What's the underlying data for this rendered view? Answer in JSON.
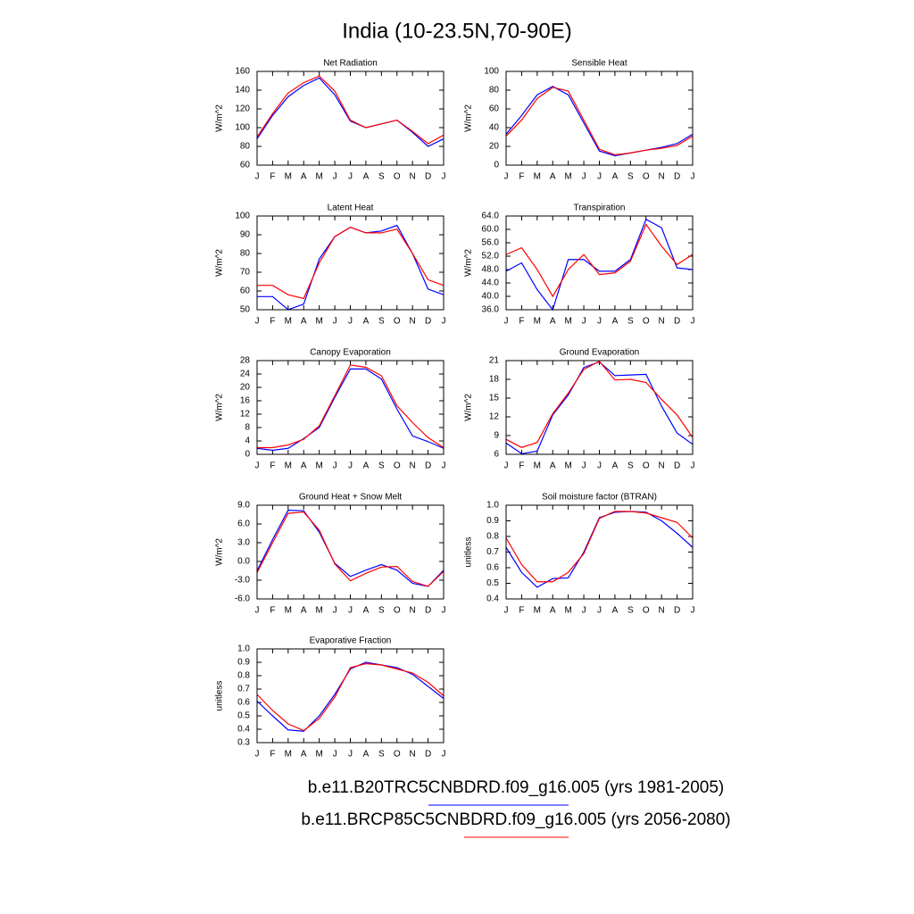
{
  "title": "India (10-23.5N,70-90E)",
  "chart_data": [
    {
      "type": "line",
      "title": "Net Radiation",
      "ylabel": "W/m^2",
      "categories": [
        "J",
        "F",
        "M",
        "A",
        "M",
        "J",
        "J",
        "A",
        "S",
        "O",
        "N",
        "D",
        "J"
      ],
      "ylim": [
        60,
        160
      ],
      "yticks": [
        60,
        80,
        100,
        120,
        140,
        160
      ],
      "series": [
        {
          "name": "b.e11.B20TRC5CNBDRD.f09_g16.005 (yrs 1981-2005)",
          "color": "#0000ff",
          "values": [
            88,
            113,
            133,
            145,
            153,
            135,
            107,
            100,
            104,
            108,
            95,
            80,
            88
          ]
        },
        {
          "name": "b.e11.BRCP85C5CNBDRD.f09_g16.005 (yrs 2056-2080)",
          "color": "#ff0000",
          "values": [
            90,
            115,
            137,
            148,
            155,
            139,
            108,
            100,
            104,
            108,
            96,
            83,
            92
          ]
        }
      ]
    },
    {
      "type": "line",
      "title": "Sensible Heat",
      "ylabel": "W/m^2",
      "categories": [
        "J",
        "F",
        "M",
        "A",
        "M",
        "J",
        "J",
        "A",
        "S",
        "O",
        "N",
        "D",
        "J"
      ],
      "ylim": [
        0,
        100
      ],
      "yticks": [
        0,
        20,
        40,
        60,
        80,
        100
      ],
      "series": [
        {
          "name": "b.e11.B20TRC5CNBDRD.f09_g16.005 (yrs 1981-2005)",
          "color": "#0000ff",
          "values": [
            33,
            53,
            75,
            84,
            75,
            45,
            15,
            10,
            13,
            16,
            19,
            23,
            33
          ]
        },
        {
          "name": "b.e11.BRCP85C5CNBDRD.f09_g16.005 (yrs 2056-2080)",
          "color": "#ff0000",
          "values": [
            31,
            48,
            71,
            83,
            79,
            48,
            17,
            11,
            13,
            16,
            18,
            21,
            31
          ]
        }
      ]
    },
    {
      "type": "line",
      "title": "Latent Heat",
      "ylabel": "W/m^2",
      "categories": [
        "J",
        "F",
        "M",
        "A",
        "M",
        "J",
        "J",
        "A",
        "S",
        "O",
        "N",
        "D",
        "J"
      ],
      "ylim": [
        50,
        100
      ],
      "yticks": [
        50,
        60,
        70,
        80,
        90,
        100
      ],
      "series": [
        {
          "name": "b.e11.B20TRC5CNBDRD.f09_g16.005 (yrs 1981-2005)",
          "color": "#0000ff",
          "values": [
            57,
            57,
            50,
            53,
            77,
            89,
            94,
            91,
            92,
            95,
            80,
            61,
            58
          ]
        },
        {
          "name": "b.e11.BRCP85C5CNBDRD.f09_g16.005 (yrs 2056-2080)",
          "color": "#ff0000",
          "values": [
            63,
            63,
            58,
            56,
            75,
            89,
            94,
            91,
            91,
            93,
            80,
            66,
            63
          ]
        }
      ]
    },
    {
      "type": "line",
      "title": "Transpiration",
      "ylabel": "W/m^2",
      "categories": [
        "J",
        "F",
        "M",
        "A",
        "M",
        "J",
        "J",
        "A",
        "S",
        "O",
        "N",
        "D",
        "J"
      ],
      "ylim": [
        36,
        64
      ],
      "yticks": [
        {
          "value": 36,
          "label": "36.0"
        },
        {
          "value": 40,
          "label": "40.0"
        },
        {
          "value": 44,
          "label": "44.0"
        },
        {
          "value": 48,
          "label": "48.0"
        },
        {
          "value": 52,
          "label": "52.0"
        },
        {
          "value": 56,
          "label": "56.0"
        },
        {
          "value": 60,
          "label": "60.0"
        },
        {
          "value": 64,
          "label": "64.0"
        }
      ],
      "series": [
        {
          "name": "b.e11.B20TRC5CNBDRD.f09_g16.005 (yrs 1981-2005)",
          "color": "#0000ff",
          "values": [
            47.5,
            50,
            42,
            36,
            51,
            51,
            47.5,
            47.5,
            51,
            63,
            60.5,
            48.5,
            48
          ]
        },
        {
          "name": "b.e11.BRCP85C5CNBDRD.f09_g16.005 (yrs 2056-2080)",
          "color": "#ff0000",
          "values": [
            52.5,
            54.5,
            48,
            40,
            48,
            52.5,
            46.5,
            47,
            50.5,
            61.5,
            55,
            49.5,
            52.5
          ]
        }
      ]
    },
    {
      "type": "line",
      "title": "Canopy Evaporation",
      "ylabel": "W/m^2",
      "categories": [
        "J",
        "F",
        "M",
        "A",
        "M",
        "J",
        "J",
        "A",
        "S",
        "O",
        "N",
        "D",
        "J"
      ],
      "ylim": [
        0,
        28
      ],
      "yticks": [
        0,
        4,
        8,
        12,
        16,
        20,
        24,
        28
      ],
      "series": [
        {
          "name": "b.e11.B20TRC5CNBDRD.f09_g16.005 (yrs 1981-2005)",
          "color": "#0000ff",
          "values": [
            1.8,
            1.2,
            1.8,
            4.7,
            8,
            17,
            25.5,
            25.5,
            22.5,
            13.5,
            5.5,
            3.8,
            1.8
          ]
        },
        {
          "name": "b.e11.BRCP85C5CNBDRD.f09_g16.005 (yrs 2056-2080)",
          "color": "#ff0000",
          "values": [
            2,
            2,
            2.8,
            4.5,
            8.5,
            17.5,
            26.7,
            26,
            23.5,
            14.5,
            9.5,
            5,
            2
          ]
        }
      ]
    },
    {
      "type": "line",
      "title": "Ground Evaporation",
      "ylabel": "W/m^2",
      "categories": [
        "J",
        "F",
        "M",
        "A",
        "M",
        "J",
        "J",
        "A",
        "S",
        "O",
        "N",
        "D",
        "J"
      ],
      "ylim": [
        6,
        21
      ],
      "yticks": [
        6,
        9,
        12,
        15,
        18,
        21
      ],
      "series": [
        {
          "name": "b.e11.B20TRC5CNBDRD.f09_g16.005 (yrs 1981-2005)",
          "color": "#0000ff",
          "values": [
            7.8,
            6.1,
            6.5,
            12.3,
            15.5,
            19.9,
            20.8,
            18.6,
            18.7,
            18.8,
            13.7,
            9.4,
            7.6
          ]
        },
        {
          "name": "b.e11.BRCP85C5CNBDRD.f09_g16.005 (yrs 2056-2080)",
          "color": "#ff0000",
          "values": [
            8.4,
            7.1,
            7.9,
            12.5,
            15.8,
            19.6,
            20.9,
            17.9,
            18,
            17.5,
            14.8,
            12.3,
            8.7
          ]
        }
      ]
    },
    {
      "type": "line",
      "title": "Ground Heat + Snow Melt",
      "ylabel": "W/m^2",
      "categories": [
        "J",
        "F",
        "M",
        "A",
        "M",
        "J",
        "J",
        "A",
        "S",
        "O",
        "N",
        "D",
        "J"
      ],
      "ylim": [
        -6,
        9
      ],
      "yticks": [
        {
          "value": -6,
          "label": "-6.0"
        },
        {
          "value": -3,
          "label": "-3.0"
        },
        {
          "value": 0,
          "label": "0.0"
        },
        {
          "value": 3,
          "label": "3.0"
        },
        {
          "value": 6,
          "label": "6.0"
        },
        {
          "value": 9,
          "label": "9.0"
        }
      ],
      "series": [
        {
          "name": "b.e11.B20TRC5CNBDRD.f09_g16.005 (yrs 1981-2005)",
          "color": "#0000ff",
          "values": [
            -1.5,
            3.5,
            8.2,
            8.1,
            4.7,
            -0.3,
            -2.4,
            -1.4,
            -0.5,
            -1.4,
            -3.5,
            -4,
            -1.4
          ]
        },
        {
          "name": "b.e11.BRCP85C5CNBDRD.f09_g16.005 (yrs 2056-2080)",
          "color": "#ff0000",
          "values": [
            -1.8,
            3,
            7.7,
            7.9,
            5,
            -0.4,
            -3.1,
            -1.9,
            -0.9,
            -0.8,
            -3.2,
            -4,
            -1.6
          ]
        }
      ]
    },
    {
      "type": "line",
      "title": "Soil moisture factor (BTRAN)",
      "ylabel": "unitless",
      "categories": [
        "J",
        "F",
        "M",
        "A",
        "M",
        "J",
        "J",
        "A",
        "S",
        "O",
        "N",
        "D",
        "J"
      ],
      "ylim": [
        0.4,
        1
      ],
      "yticks": [
        0.4,
        0.5,
        0.6,
        0.7,
        0.8,
        0.9,
        {
          "value": 1,
          "label": "1.0"
        }
      ],
      "series": [
        {
          "name": "b.e11.B20TRC5CNBDRD.f09_g16.005 (yrs 1981-2005)",
          "color": "#0000ff",
          "values": [
            0.73,
            0.57,
            0.475,
            0.53,
            0.535,
            0.7,
            0.92,
            0.955,
            0.96,
            0.955,
            0.9,
            0.82,
            0.73
          ]
        },
        {
          "name": "b.e11.BRCP85C5CNBDRD.f09_g16.005 (yrs 2056-2080)",
          "color": "#ff0000",
          "values": [
            0.79,
            0.62,
            0.51,
            0.51,
            0.57,
            0.69,
            0.915,
            0.96,
            0.96,
            0.95,
            0.92,
            0.89,
            0.79
          ]
        }
      ]
    },
    {
      "type": "line",
      "title": "Evaporative Fraction",
      "ylabel": "unitless",
      "categories": [
        "J",
        "F",
        "M",
        "A",
        "M",
        "J",
        "J",
        "A",
        "S",
        "O",
        "N",
        "D",
        "J"
      ],
      "ylim": [
        0.3,
        1
      ],
      "yticks": [
        0.3,
        0.4,
        0.5,
        0.6,
        0.7,
        0.8,
        0.9,
        {
          "value": 1,
          "label": "1.0"
        }
      ],
      "series": [
        {
          "name": "b.e11.B20TRC5CNBDRD.f09_g16.005 (yrs 1981-2005)",
          "color": "#0000ff",
          "values": [
            0.61,
            0.5,
            0.395,
            0.385,
            0.5,
            0.66,
            0.85,
            0.9,
            0.88,
            0.86,
            0.81,
            0.72,
            0.63
          ]
        },
        {
          "name": "b.e11.BRCP85C5CNBDRD.f09_g16.005 (yrs 2056-2080)",
          "color": "#ff0000",
          "values": [
            0.66,
            0.54,
            0.44,
            0.39,
            0.48,
            0.64,
            0.86,
            0.89,
            0.88,
            0.85,
            0.82,
            0.75,
            0.65
          ]
        }
      ]
    }
  ]
}
